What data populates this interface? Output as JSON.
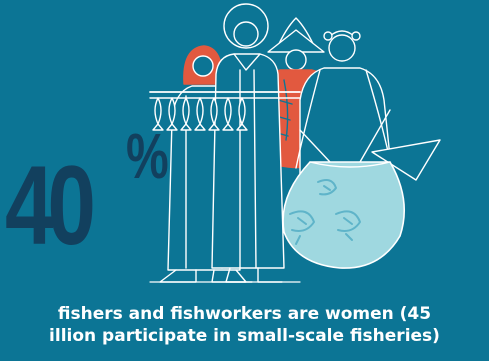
{
  "stat": {
    "number": "40",
    "unit": "%"
  },
  "caption": {
    "line1": "fishers and fishworkers are women (45",
    "line2": "illion participate in small-scale fisheries)"
  },
  "colors": {
    "background": "#0c7595",
    "stat_text": "#12405e",
    "line_art": "#ffffff",
    "accent": "#e2593f",
    "bag_fill": "#9fd8e0",
    "shrimp": "#5fb4c9"
  },
  "icons": [
    "women-fishworkers-illustration",
    "fish-drying-rack-icon",
    "fish-net-bag-icon",
    "shrimp-icon"
  ]
}
